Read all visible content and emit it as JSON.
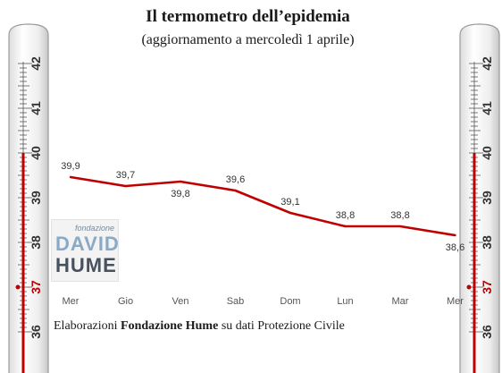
{
  "title": "Il termometro dell’epidemia",
  "subtitle": "(aggiornamento a mercoledì 1 aprile)",
  "footer": {
    "prefix": "Elaborazioni ",
    "bold": "Fondazione Hume",
    "suffix": " su dati Protezione Civile"
  },
  "logo": {
    "top": "fondazione",
    "line1": "DAVID",
    "line2": "HUME"
  },
  "thermometer": {
    "labels": [
      "42",
      "41",
      "40",
      "39",
      "38",
      "37",
      "36"
    ],
    "marker": "37",
    "mercury_top": 40,
    "colors": {
      "mercury": "#c00000",
      "marker": "#c00000"
    }
  },
  "chart_data": {
    "type": "line",
    "categories": [
      "Mer",
      "Gio",
      "Ven",
      "Sab",
      "Dom",
      "Lun",
      "Mar",
      "Mer"
    ],
    "values": [
      39.9,
      39.7,
      39.8,
      39.6,
      39.1,
      38.8,
      38.8,
      38.6
    ],
    "value_labels": [
      "39,9",
      "39,7",
      "39,8",
      "39,6",
      "39,1",
      "38,8",
      "38,8",
      "38,6"
    ],
    "label_position": [
      "above",
      "above",
      "below",
      "above",
      "above",
      "above",
      "above",
      "below"
    ],
    "ylim": [
      37.3,
      40.7
    ],
    "line_color": "#c00000",
    "grid": false,
    "legend": "none"
  }
}
